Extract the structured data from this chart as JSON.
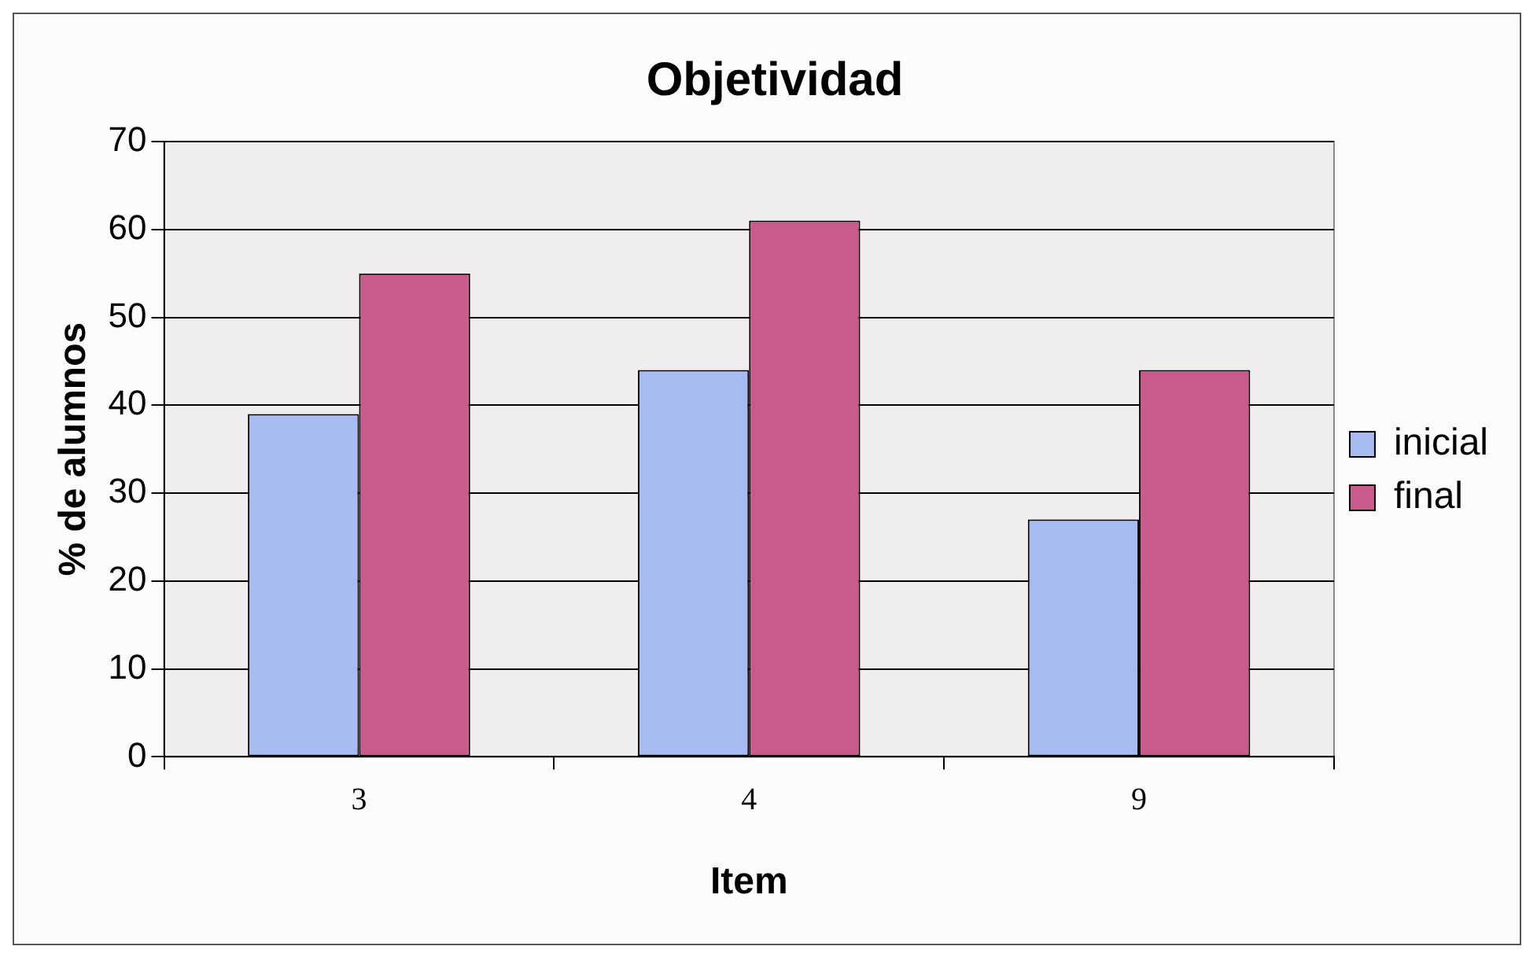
{
  "chart_data": {
    "type": "bar",
    "title": "Objetividad",
    "xlabel": "Item",
    "ylabel": "% de alumnos",
    "categories": [
      "3",
      "4",
      "9"
    ],
    "series": [
      {
        "name": "inicial",
        "color": "#a8bbf0",
        "values": [
          39,
          44,
          27
        ]
      },
      {
        "name": "final",
        "color": "#c95b8c",
        "values": [
          55,
          61,
          44
        ]
      }
    ],
    "ylim": [
      0,
      70
    ],
    "yticks": [
      0,
      10,
      20,
      30,
      40,
      50,
      60,
      70
    ],
    "grid": "y",
    "legend": "right"
  }
}
